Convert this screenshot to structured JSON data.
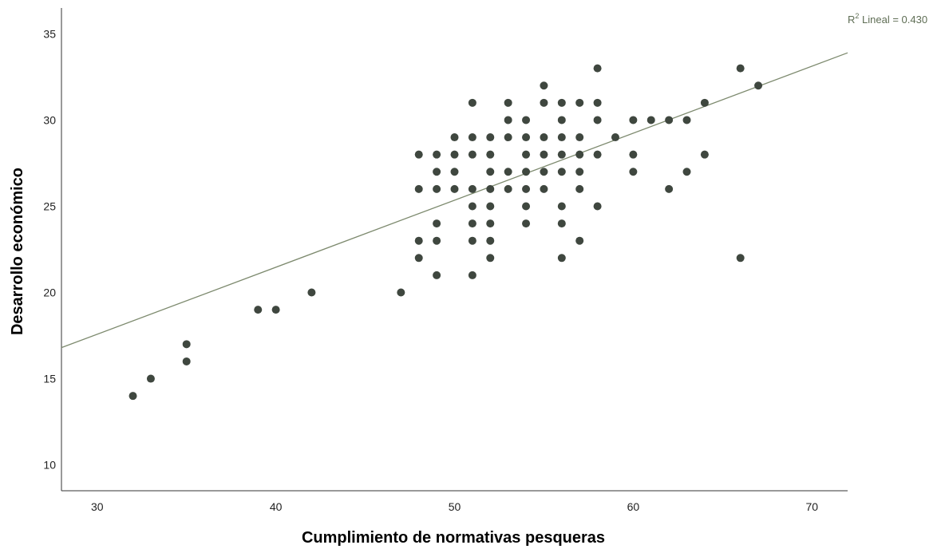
{
  "chart_data": {
    "type": "scatter",
    "xlabel": "Cumplimiento de normativas pesqueras",
    "ylabel": "Desarrollo económico",
    "xlim": [
      28,
      72
    ],
    "ylim": [
      8.5,
      36.5
    ],
    "xticks": [
      30,
      40,
      50,
      60,
      70
    ],
    "yticks": [
      10,
      15,
      20,
      25,
      30,
      35
    ],
    "grid": false,
    "point_color": "#3f473f",
    "fit_line": {
      "label_prefix": "R",
      "label_sup": "2",
      "label_suffix": " Lineal = 0.430",
      "color": "#7d8a6e",
      "points": [
        [
          28,
          16.8
        ],
        [
          72,
          33.9
        ]
      ]
    },
    "points": [
      [
        32,
        14
      ],
      [
        33,
        15
      ],
      [
        35,
        16
      ],
      [
        35,
        17
      ],
      [
        39,
        19
      ],
      [
        40,
        19
      ],
      [
        42,
        20
      ],
      [
        47,
        20
      ],
      [
        48,
        28
      ],
      [
        48,
        26
      ],
      [
        48,
        23
      ],
      [
        48,
        22
      ],
      [
        49,
        28
      ],
      [
        49,
        27
      ],
      [
        49,
        26
      ],
      [
        49,
        24
      ],
      [
        49,
        23
      ],
      [
        49,
        21
      ],
      [
        50,
        29
      ],
      [
        50,
        28
      ],
      [
        50,
        27
      ],
      [
        50,
        26
      ],
      [
        51,
        31
      ],
      [
        51,
        29
      ],
      [
        51,
        28
      ],
      [
        51,
        26
      ],
      [
        51,
        25
      ],
      [
        51,
        24
      ],
      [
        51,
        23
      ],
      [
        51,
        21
      ],
      [
        52,
        29
      ],
      [
        52,
        28
      ],
      [
        52,
        27
      ],
      [
        52,
        26
      ],
      [
        52,
        25
      ],
      [
        52,
        24
      ],
      [
        52,
        23
      ],
      [
        52,
        22
      ],
      [
        53,
        31
      ],
      [
        53,
        30
      ],
      [
        53,
        29
      ],
      [
        53,
        27
      ],
      [
        53,
        26
      ],
      [
        54,
        30
      ],
      [
        54,
        29
      ],
      [
        54,
        28
      ],
      [
        54,
        27
      ],
      [
        54,
        26
      ],
      [
        54,
        25
      ],
      [
        54,
        24
      ],
      [
        55,
        32
      ],
      [
        55,
        31
      ],
      [
        55,
        29
      ],
      [
        55,
        28
      ],
      [
        55,
        27
      ],
      [
        55,
        26
      ],
      [
        56,
        31
      ],
      [
        56,
        30
      ],
      [
        56,
        29
      ],
      [
        56,
        28
      ],
      [
        56,
        27
      ],
      [
        56,
        25
      ],
      [
        56,
        24
      ],
      [
        56,
        22
      ],
      [
        57,
        31
      ],
      [
        57,
        29
      ],
      [
        57,
        28
      ],
      [
        57,
        27
      ],
      [
        57,
        26
      ],
      [
        57,
        23
      ],
      [
        58,
        33
      ],
      [
        58,
        31
      ],
      [
        58,
        30
      ],
      [
        58,
        28
      ],
      [
        58,
        25
      ],
      [
        59,
        29
      ],
      [
        60,
        30
      ],
      [
        60,
        28
      ],
      [
        60,
        27
      ],
      [
        61,
        30
      ],
      [
        62,
        30
      ],
      [
        62,
        26
      ],
      [
        63,
        30
      ],
      [
        63,
        27
      ],
      [
        64,
        31
      ],
      [
        64,
        28
      ],
      [
        66,
        33
      ],
      [
        66,
        22
      ],
      [
        67,
        32
      ]
    ]
  }
}
